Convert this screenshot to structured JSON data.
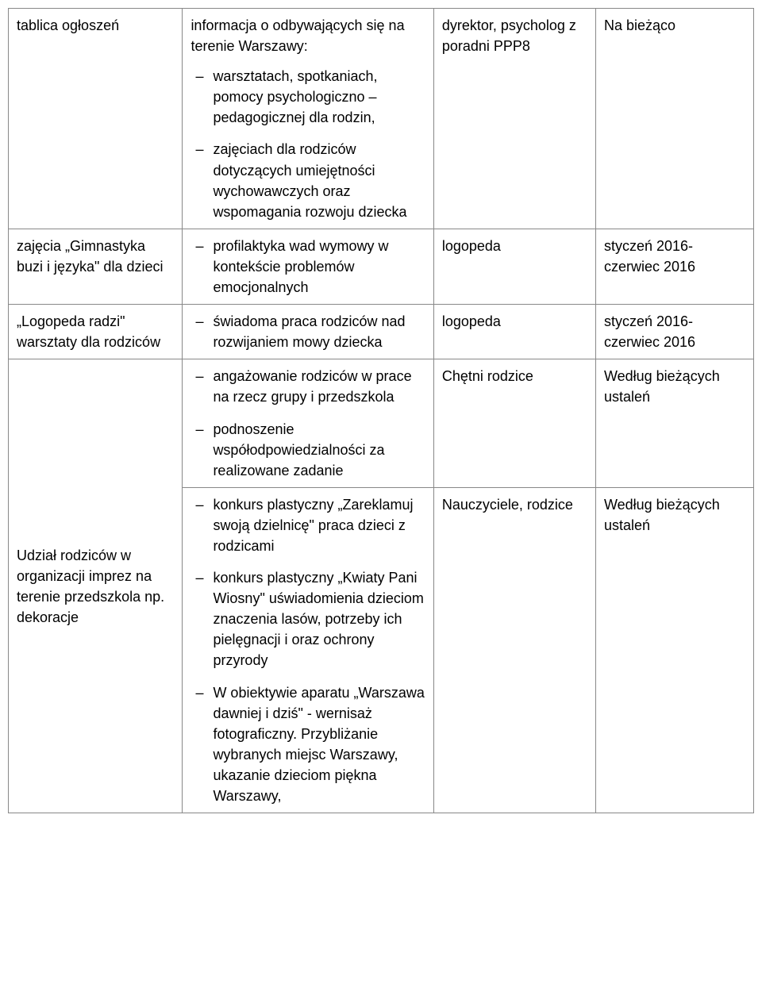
{
  "rows": [
    {
      "c1": "tablica ogłoszeń",
      "c2_intro": "informacja o odbywających się na terenie Warszawy:",
      "c2_items": [
        "warsztatach, spotkaniach, pomocy psychologiczno – pedagogicznej dla rodzin,",
        "zajęciach dla rodziców dotyczących umiejętności wychowawczych oraz wspomagania rozwoju dziecka"
      ],
      "c3": "dyrektor, psycholog z poradni PPP8",
      "c4": "Na bieżąco"
    },
    {
      "c1": "zajęcia „Gimnastyka buzi i języka\" dla dzieci",
      "c2_items": [
        "profilaktyka wad wymowy w kontekście problemów emocjonalnych"
      ],
      "c3": "logopeda",
      "c4": "styczeń 2016- czerwiec 2016"
    },
    {
      "c1": "„Logopeda radzi\" warsztaty dla rodziców",
      "c2_items": [
        "świadoma praca rodziców nad rozwijaniem mowy dziecka"
      ],
      "c3": "logopeda",
      "c4": "styczeń 2016- czerwiec 2016"
    },
    {
      "c1_rowspan": 2,
      "c1": "Udział rodziców w organizacji imprez na terenie przedszkola np. dekoracje",
      "c1_vertical_middle": true,
      "c2_items": [
        "angażowanie rodziców w prace na rzecz grupy i przedszkola",
        "podnoszenie współodpowiedzialności za realizowane zadanie"
      ],
      "c3": "Chętni rodzice",
      "c4": "Według bieżących ustaleń"
    },
    {
      "c1_skip": true,
      "c2_items": [
        "konkurs plastyczny „Zareklamuj swoją dzielnicę\" praca dzieci z rodzicami",
        "konkurs plastyczny „Kwiaty Pani Wiosny\" uświadomienia dzieciom znaczenia lasów, potrzeby ich pielęgnacji i oraz ochrony przyrody",
        "W obiektywie aparatu „Warszawa dawniej i dziś\" - wernisaż fotograficzny. Przybliżanie wybranych miejsc Warszawy, ukazanie dzieciom piękna Warszawy,"
      ],
      "c3": "Nauczyciele, rodzice",
      "c4": "Według bieżących ustaleń"
    }
  ]
}
